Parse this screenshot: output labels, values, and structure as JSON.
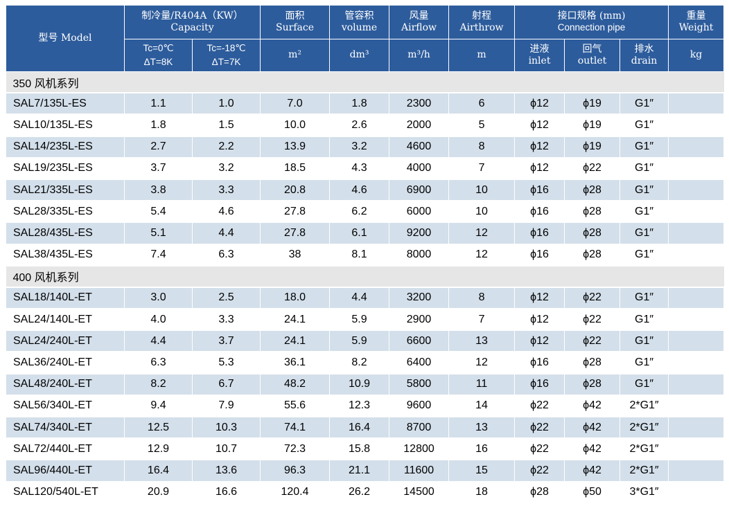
{
  "header": {
    "model": "型号 Model",
    "capacity_cn": "制冷量/R404A（KW）",
    "capacity_en": "Capacity",
    "tc0": "Tc=0℃",
    "dt8": "ΔT=8K",
    "tc18": "Tc=-18℃",
    "dt7": "ΔT=7K",
    "surface_cn": "面积",
    "surface_en": "Surface",
    "surface_unit": "m²",
    "volume_cn": "管容积",
    "volume_en": "volume",
    "volume_unit": "dm³",
    "airflow_cn": "风量",
    "airflow_en": "Airflow",
    "airflow_unit": "m³/h",
    "airthrow_cn": "射程",
    "airthrow_en": "Airthrow",
    "airthrow_unit": "m",
    "pipe_cn": "接口规格 (mm)",
    "pipe_en": "Connection pipe",
    "inlet_cn": "进液",
    "inlet_en": "inlet",
    "outlet_cn": "回气",
    "outlet_en": "outlet",
    "drain_cn": "排水",
    "drain_en": "drain",
    "weight_cn": "重量",
    "weight_en": "Weight",
    "weight_unit": "kg"
  },
  "sections": [
    {
      "title": "350 风机系列",
      "rows": [
        [
          "SAL7/135L-ES",
          "1.1",
          "1.0",
          "7.0",
          "1.8",
          "2300",
          "6",
          "ϕ12",
          "ϕ19",
          "G1″",
          ""
        ],
        [
          "SAL10/135L-ES",
          "1.8",
          "1.5",
          "10.0",
          "2.6",
          "2000",
          "5",
          "ϕ12",
          "ϕ19",
          "G1″",
          ""
        ],
        [
          "SAL14/235L-ES",
          "2.7",
          "2.2",
          "13.9",
          "3.2",
          "4600",
          "8",
          "ϕ12",
          "ϕ19",
          "G1″",
          ""
        ],
        [
          "SAL19/235L-ES",
          "3.7",
          "3.2",
          "18.5",
          "4.3",
          "4000",
          "7",
          "ϕ12",
          "ϕ22",
          "G1″",
          ""
        ],
        [
          "SAL21/335L-ES",
          "3.8",
          "3.3",
          "20.8",
          "4.6",
          "6900",
          "10",
          "ϕ16",
          "ϕ28",
          "G1″",
          ""
        ],
        [
          "SAL28/335L-ES",
          "5.4",
          "4.6",
          "27.8",
          "6.2",
          "6000",
          "10",
          "ϕ16",
          "ϕ28",
          "G1″",
          ""
        ],
        [
          "SAL28/435L-ES",
          "5.1",
          "4.4",
          "27.8",
          "6.1",
          "9200",
          "12",
          "ϕ16",
          "ϕ28",
          "G1″",
          ""
        ],
        [
          "SAL38/435L-ES",
          "7.4",
          "6.3",
          "38",
          "8.1",
          "8000",
          "12",
          "ϕ16",
          "ϕ28",
          "G1″",
          ""
        ]
      ]
    },
    {
      "title": "400 风机系列",
      "rows": [
        [
          "SAL18/140L-ET",
          "3.0",
          "2.5",
          "18.0",
          "4.4",
          "3200",
          "8",
          "ϕ12",
          "ϕ22",
          "G1″",
          ""
        ],
        [
          "SAL24/140L-ET",
          "4.0",
          "3.3",
          "24.1",
          "5.9",
          "2900",
          "7",
          "ϕ12",
          "ϕ22",
          "G1″",
          ""
        ],
        [
          "SAL24/240L-ET",
          "4.4",
          "3.7",
          "24.1",
          "5.9",
          "6600",
          "13",
          "ϕ12",
          "ϕ22",
          "G1″",
          ""
        ],
        [
          "SAL36/240L-ET",
          "6.3",
          "5.3",
          "36.1",
          "8.2",
          "6400",
          "12",
          "ϕ16",
          "ϕ28",
          "G1″",
          ""
        ],
        [
          "SAL48/240L-ET",
          "8.2",
          "6.7",
          "48.2",
          "10.9",
          "5800",
          "11",
          "ϕ16",
          "ϕ28",
          "G1″",
          ""
        ],
        [
          "SAL56/340L-ET",
          "9.4",
          "7.9",
          "55.6",
          "12.3",
          "9600",
          "14",
          "ϕ22",
          "ϕ42",
          "2*G1″",
          ""
        ],
        [
          "SAL74/340L-ET",
          "12.5",
          "10.3",
          "74.1",
          "16.4",
          "8700",
          "13",
          "ϕ22",
          "ϕ42",
          "2*G1″",
          ""
        ],
        [
          "SAL72/440L-ET",
          "12.9",
          "10.7",
          "72.3",
          "15.8",
          "12800",
          "16",
          "ϕ22",
          "ϕ42",
          "2*G1″",
          ""
        ],
        [
          "SAL96/440L-ET",
          "16.4",
          "13.6",
          "96.3",
          "21.1",
          "11600",
          "15",
          "ϕ22",
          "ϕ42",
          "2*G1″",
          ""
        ],
        [
          "SAL120/540L-ET",
          "20.9",
          "16.6",
          "120.4",
          "26.2",
          "14500",
          "18",
          "ϕ28",
          "ϕ50",
          "3*G1″",
          ""
        ]
      ]
    }
  ],
  "colors": {
    "header_bg": "#2d5c9c",
    "row_stripe": "#d3dfea",
    "section_bg": "#e6e6e6"
  }
}
